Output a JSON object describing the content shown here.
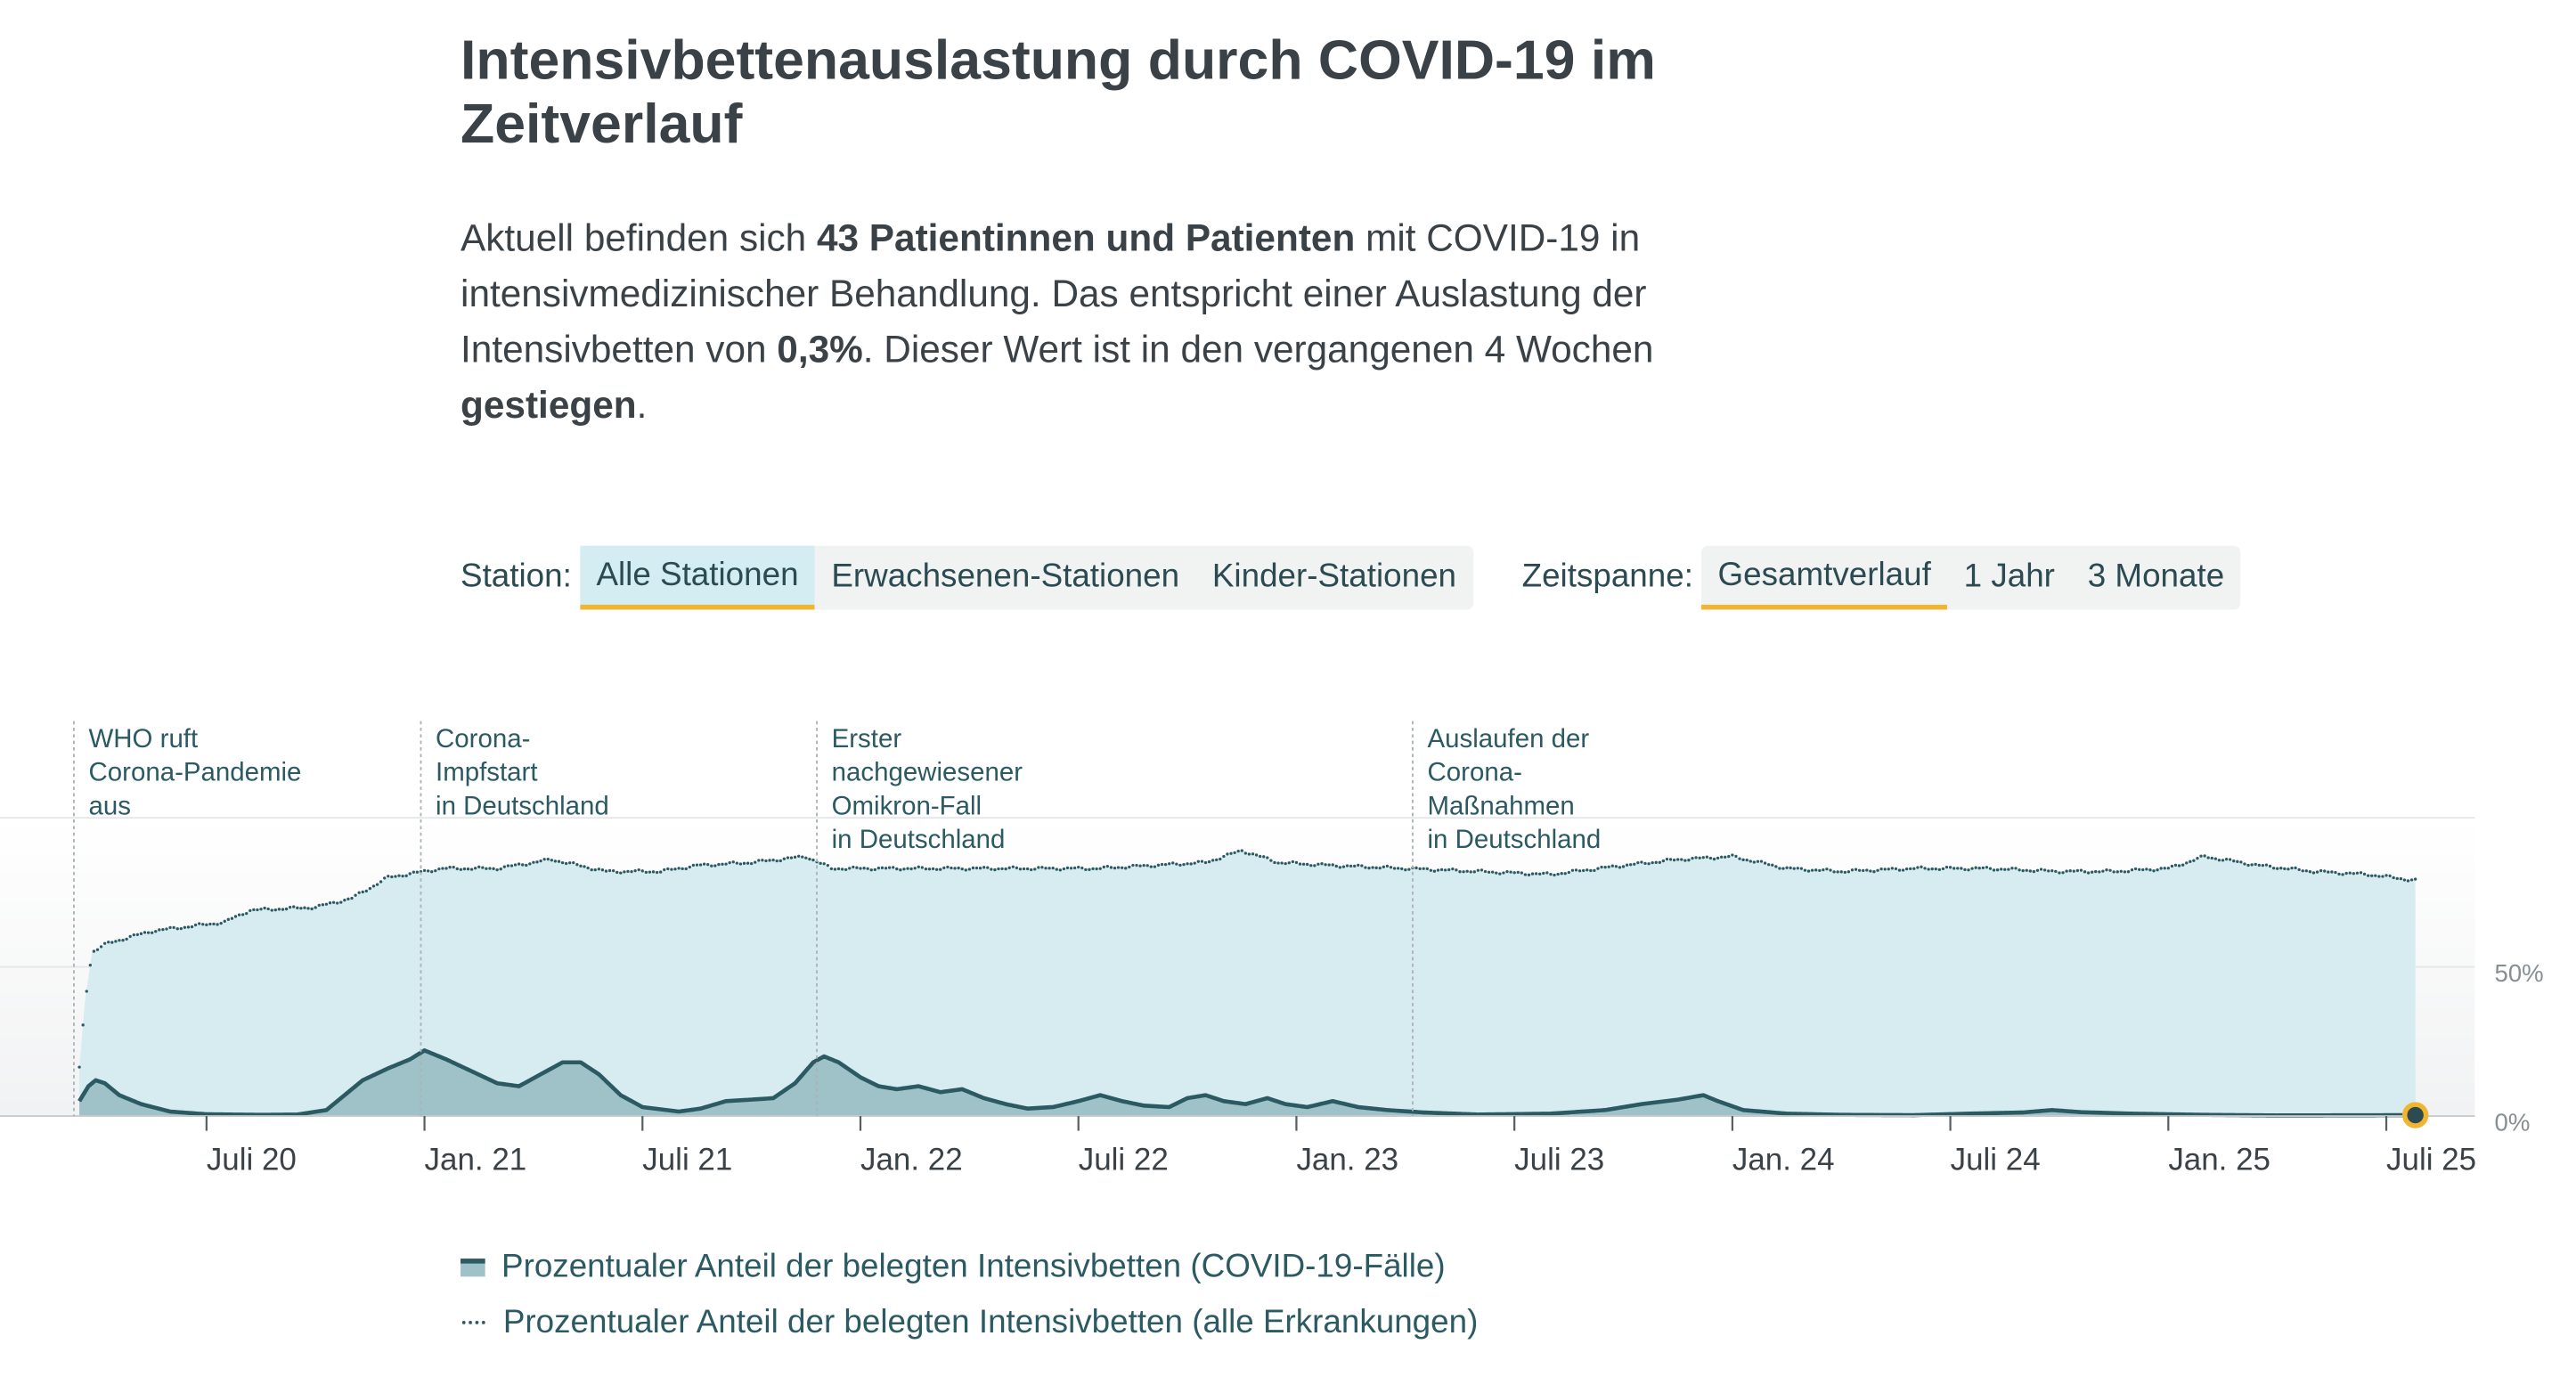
{
  "title": "Intensivbettenauslastung durch COVID-19 im Zeitverlauf",
  "lead": {
    "p1": "Aktuell befinden sich ",
    "b1": "43 Patientinnen und Patienten",
    "p2": " mit COVID-19 in intensivmedizinischer Behandlung. Das entspricht einer Auslastung der Intensivbetten von ",
    "b2": "0,3%",
    "p3": ". Dieser Wert ist in den vergangenen 4 Wochen ",
    "b3": "gestiegen",
    "p4": "."
  },
  "controls": {
    "station_label": "Station:",
    "station_options": [
      "Alle Stationen",
      "Erwachsenen-Stationen",
      "Kinder-Stationen"
    ],
    "station_selected": "Alle Stationen",
    "period_label": "Zeitspanne:",
    "period_options": [
      "Gesamtverlauf",
      "1 Jahr",
      "3 Monate"
    ],
    "period_selected": "Gesamtverlauf"
  },
  "legend": {
    "covid": "Prozentualer Anteil der belegten Intensivbetten (COVID-19-Fälle)",
    "all": "Prozentualer Anteil der belegten Intensivbetten (alle Erkrankungen)"
  },
  "colors": {
    "covid_fill": "#9ec2c7",
    "covid_line": "#2c5a63",
    "all_fill": "#d6ecf0",
    "dots": "#2c5a63",
    "accent": "#f2b530"
  },
  "chart_data": {
    "type": "area",
    "x_unit": "months since Jan 2020",
    "ylim": [
      0,
      100
    ],
    "y_ticks": [
      {
        "value": 0,
        "label": "0%"
      },
      {
        "value": 50,
        "label": "50%"
      }
    ],
    "x_ticks": [
      {
        "t": 6,
        "label": "Juli 20"
      },
      {
        "t": 12,
        "label": "Jan. 21"
      },
      {
        "t": 18,
        "label": "Juli 21"
      },
      {
        "t": 24,
        "label": "Jan. 22"
      },
      {
        "t": 30,
        "label": "Juli 22"
      },
      {
        "t": 36,
        "label": "Jan. 23"
      },
      {
        "t": 42,
        "label": "Juli 23"
      },
      {
        "t": 48,
        "label": "Jan. 24"
      },
      {
        "t": 54,
        "label": "Juli 24"
      },
      {
        "t": 60,
        "label": "Jan. 25"
      },
      {
        "t": 66,
        "label": "Juli 25"
      }
    ],
    "annotations": [
      {
        "t": 2.35,
        "lines": [
          "WHO ruft",
          "Corona-Pandemie",
          "aus"
        ]
      },
      {
        "t": 11.9,
        "lines": [
          "Corona-",
          "Impfstart",
          "in Deutschland"
        ]
      },
      {
        "t": 22.8,
        "lines": [
          "Erster",
          "nachgewiesener",
          "Omikron-Fall",
          "in Deutschland"
        ]
      },
      {
        "t": 39.2,
        "lines": [
          "Auslaufen der",
          "Corona-",
          "Maßnahmen",
          "in Deutschland"
        ]
      }
    ],
    "series": [
      {
        "name": "Prozentualer Anteil der belegten Intensivbetten (alle Erkrankungen)",
        "points": [
          [
            2.5,
            16
          ],
          [
            2.65,
            38
          ],
          [
            2.85,
            55
          ],
          [
            3.3,
            58
          ],
          [
            4.5,
            62
          ],
          [
            6.5,
            65
          ],
          [
            7.2,
            69
          ],
          [
            9.0,
            70
          ],
          [
            10.0,
            73
          ],
          [
            11.0,
            80
          ],
          [
            12.5,
            83
          ],
          [
            14.0,
            83
          ],
          [
            15.5,
            86
          ],
          [
            17.0,
            82
          ],
          [
            18.5,
            82
          ],
          [
            19.5,
            84
          ],
          [
            21.0,
            85
          ],
          [
            22.5,
            87
          ],
          [
            23.2,
            83
          ],
          [
            24.5,
            83
          ],
          [
            26.0,
            83
          ],
          [
            27.5,
            83
          ],
          [
            29.0,
            83
          ],
          [
            30.5,
            83
          ],
          [
            32.0,
            84
          ],
          [
            33.5,
            85
          ],
          [
            34.5,
            89
          ],
          [
            35.5,
            85
          ],
          [
            37.0,
            84
          ],
          [
            39.0,
            83
          ],
          [
            41.0,
            82
          ],
          [
            43.0,
            81
          ],
          [
            45.0,
            84
          ],
          [
            46.5,
            86
          ],
          [
            48.0,
            87
          ],
          [
            49.5,
            83
          ],
          [
            51.0,
            82
          ],
          [
            53.0,
            83
          ],
          [
            55.0,
            83
          ],
          [
            57.0,
            82
          ],
          [
            58.5,
            82
          ],
          [
            60.0,
            83
          ],
          [
            61.0,
            87
          ],
          [
            62.5,
            84
          ],
          [
            64.0,
            82
          ],
          [
            65.5,
            81
          ],
          [
            66.8,
            79
          ]
        ]
      },
      {
        "name": "Prozentualer Anteil der belegten Intensivbetten (COVID-19-Fälle)",
        "points": [
          [
            2.5,
            5
          ],
          [
            2.75,
            10
          ],
          [
            2.95,
            12
          ],
          [
            3.2,
            11
          ],
          [
            3.6,
            7
          ],
          [
            4.2,
            4
          ],
          [
            5.0,
            1.5
          ],
          [
            6.0,
            0.6
          ],
          [
            7.5,
            0.4
          ],
          [
            8.5,
            0.5
          ],
          [
            9.3,
            2
          ],
          [
            9.8,
            7
          ],
          [
            10.3,
            12
          ],
          [
            11.0,
            16
          ],
          [
            11.6,
            19
          ],
          [
            12.0,
            22
          ],
          [
            12.6,
            19
          ],
          [
            13.3,
            15
          ],
          [
            14.0,
            11
          ],
          [
            14.6,
            10
          ],
          [
            15.2,
            14
          ],
          [
            15.8,
            18
          ],
          [
            16.3,
            18
          ],
          [
            16.8,
            14
          ],
          [
            17.4,
            7
          ],
          [
            18.0,
            3
          ],
          [
            19.0,
            1.5
          ],
          [
            19.6,
            2.5
          ],
          [
            20.3,
            5
          ],
          [
            21.0,
            5.5
          ],
          [
            21.6,
            6
          ],
          [
            22.2,
            11
          ],
          [
            22.7,
            18
          ],
          [
            23.0,
            20
          ],
          [
            23.4,
            18
          ],
          [
            24.0,
            13
          ],
          [
            24.5,
            10
          ],
          [
            25.0,
            9
          ],
          [
            25.6,
            10
          ],
          [
            26.2,
            8
          ],
          [
            26.8,
            9
          ],
          [
            27.4,
            6
          ],
          [
            28.0,
            4
          ],
          [
            28.6,
            2.5
          ],
          [
            29.3,
            3
          ],
          [
            30.0,
            5
          ],
          [
            30.6,
            7
          ],
          [
            31.2,
            5
          ],
          [
            31.8,
            3.5
          ],
          [
            32.5,
            3
          ],
          [
            33.0,
            6
          ],
          [
            33.5,
            7
          ],
          [
            34.0,
            5
          ],
          [
            34.6,
            4
          ],
          [
            35.2,
            6
          ],
          [
            35.7,
            4
          ],
          [
            36.3,
            3
          ],
          [
            37.0,
            5
          ],
          [
            37.7,
            3
          ],
          [
            38.5,
            2
          ],
          [
            39.5,
            1.2
          ],
          [
            41.0,
            0.5
          ],
          [
            43.0,
            0.8
          ],
          [
            44.5,
            2
          ],
          [
            45.5,
            4
          ],
          [
            46.5,
            5.5
          ],
          [
            47.2,
            7
          ],
          [
            47.6,
            5
          ],
          [
            48.3,
            2
          ],
          [
            49.5,
            0.8
          ],
          [
            51.0,
            0.4
          ],
          [
            53.0,
            0.3
          ],
          [
            54.5,
            0.8
          ],
          [
            56.0,
            1.2
          ],
          [
            56.8,
            2
          ],
          [
            57.6,
            1.3
          ],
          [
            59.0,
            0.8
          ],
          [
            61.0,
            0.4
          ],
          [
            63.0,
            0.2
          ],
          [
            66.8,
            0.3
          ]
        ]
      }
    ],
    "current_point": {
      "t": 66.8,
      "value": 0.3
    }
  }
}
